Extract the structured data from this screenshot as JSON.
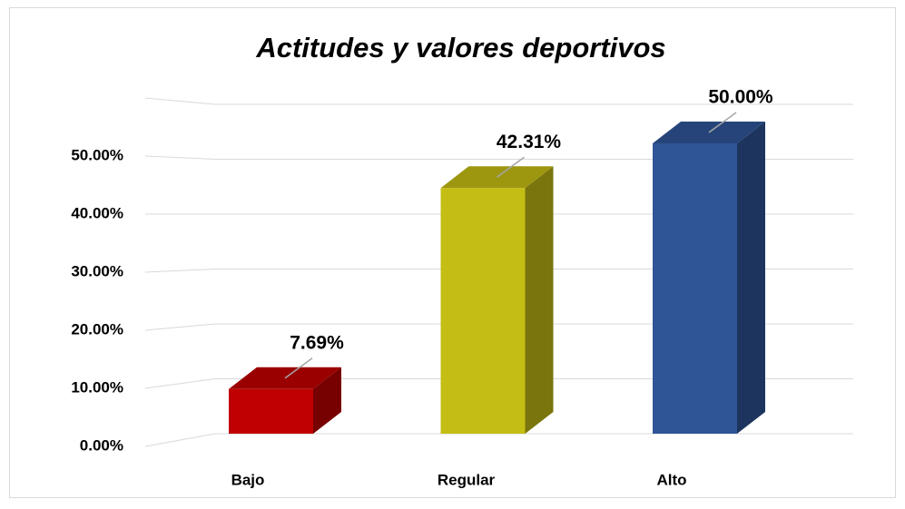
{
  "chart_data": {
    "type": "bar3d",
    "title": "Actitudes y valores deportivos",
    "categories": [
      "Bajo",
      "Regular",
      "Alto"
    ],
    "values": [
      7.69,
      42.31,
      50.0
    ],
    "value_labels": [
      "7.69%",
      "42.31%",
      "50.00%"
    ],
    "colors": [
      "#c00000",
      "#c4bd14",
      "#2f5597"
    ],
    "ylim": [
      0,
      60
    ],
    "yticks": [
      {
        "value": 0,
        "label": "0.00%"
      },
      {
        "value": 10,
        "label": "10.00%"
      },
      {
        "value": 20,
        "label": "20.00%"
      },
      {
        "value": 30,
        "label": "30.00%"
      },
      {
        "value": 40,
        "label": "40.00%"
      },
      {
        "value": 50,
        "label": "50.00%"
      }
    ],
    "grid": true
  }
}
